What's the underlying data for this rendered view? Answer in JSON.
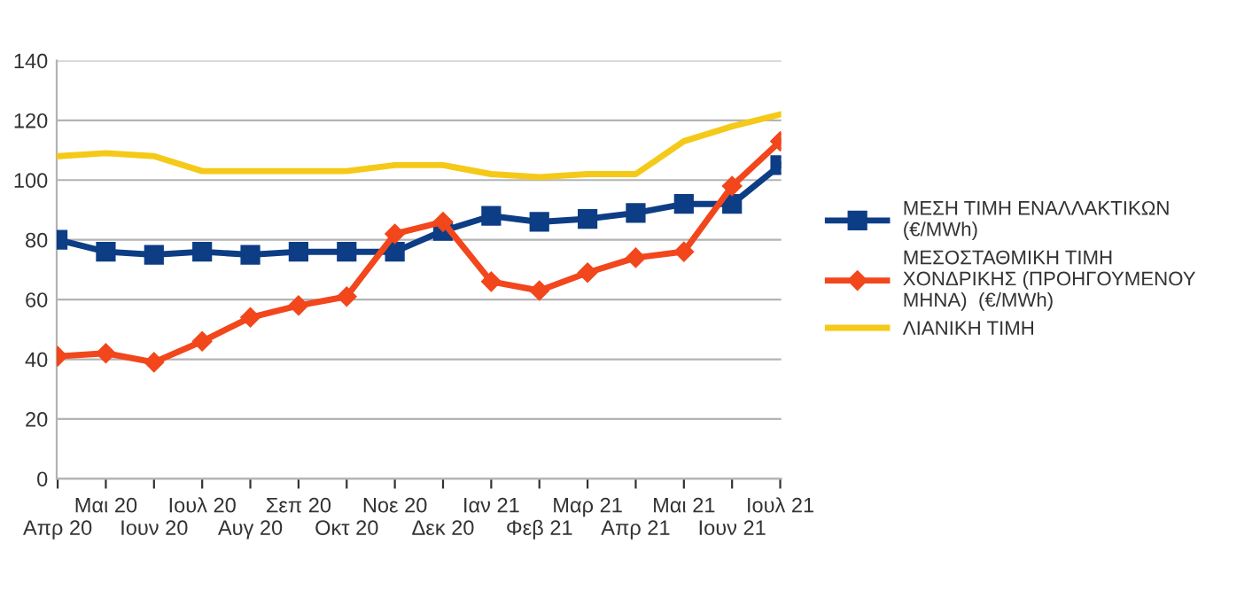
{
  "chart_data": {
    "type": "line",
    "categories": [
      "Απρ 20",
      "Μαι 20",
      "Ιουν 20",
      "Ιουλ 20",
      "Αυγ 20",
      "Σεπ 20",
      "Οκτ 20",
      "Νοε 20",
      "Δεκ 20",
      "Ιαν 21",
      "Φεβ 21",
      "Μαρ 21",
      "Απρ 21",
      "Μαι 21",
      "Ιουν 21",
      "Ιουλ 21"
    ],
    "series": [
      {
        "name": "ΜΕΣΗ ΤΙΜΗ ΕΝΑΛΛΑΚΤΙΚΩΝ\n(€/MWh)",
        "color": "#0d3d85",
        "marker": "square",
        "values": [
          80,
          76,
          75,
          76,
          75,
          76,
          76,
          76,
          83,
          88,
          86,
          87,
          89,
          92,
          92,
          105
        ]
      },
      {
        "name": "ΜΕΣΟΣΤΑΘΜΙΚΗ ΤΙΜΗ\nΧΟΝΔΡΙΚΗΣ (ΠΡΟΗΓΟΥΜΕΝΟΥ\nΜΗΝΑ)  (€/MWh)",
        "color": "#f2461c",
        "marker": "diamond",
        "values": [
          41,
          42,
          39,
          46,
          54,
          58,
          61,
          82,
          86,
          66,
          63,
          69,
          74,
          76,
          98,
          113
        ]
      },
      {
        "name": "ΛΙΑΝΙΚΗ ΤΙΜΗ",
        "color": "#f5c918",
        "marker": "none",
        "values": [
          108,
          109,
          108,
          103,
          103,
          103,
          103,
          105,
          105,
          102,
          101,
          102,
          102,
          113,
          118,
          122
        ]
      }
    ],
    "ylim": [
      0,
      140
    ],
    "yticks": [
      0,
      20,
      40,
      60,
      80,
      100,
      120,
      140
    ],
    "grid": "y",
    "legend": "right"
  }
}
